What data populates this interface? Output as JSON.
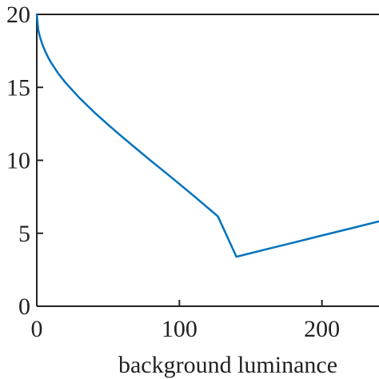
{
  "chart_data": {
    "type": "line",
    "title": "",
    "xlabel": "background luminance",
    "ylabel": "",
    "xlim": [
      0,
      240
    ],
    "ylim": [
      0,
      20
    ],
    "x_ticks": [
      0,
      100,
      200
    ],
    "y_ticks": [
      0,
      5,
      10,
      15,
      20
    ],
    "grid": false,
    "legend": "none",
    "series": [
      {
        "color": "#0072BD",
        "x": [
          0,
          1,
          2,
          4,
          6,
          8,
          10,
          15,
          20,
          30,
          40,
          50,
          60,
          70,
          80,
          90,
          100,
          110,
          120,
          127,
          140,
          160,
          180,
          200,
          220,
          240
        ],
        "y": [
          20,
          18.96,
          18.53,
          17.92,
          17.45,
          17.05,
          16.7,
          15.96,
          15.34,
          14.27,
          13.32,
          12.44,
          11.6,
          10.78,
          9.97,
          9.18,
          8.38,
          7.57,
          6.74,
          6.16,
          3.39,
          3.88,
          4.36,
          4.85,
          5.33,
          5.82
        ]
      }
    ]
  }
}
